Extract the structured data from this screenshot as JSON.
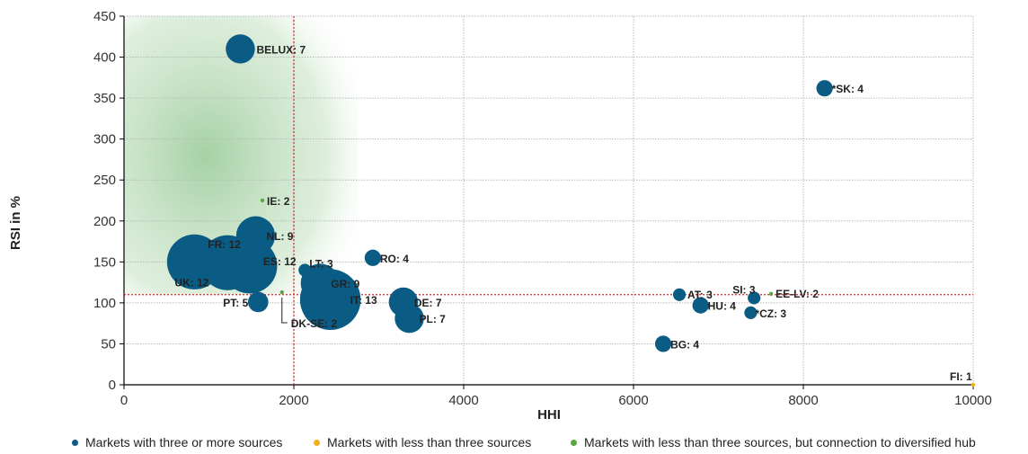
{
  "colors": {
    "blue": "#0b5c85",
    "orange": "#f5b015",
    "green": "#57a845",
    "threshold": "#cc2a2a",
    "zone": "#5cab5a",
    "grid": "#b8b8b8"
  },
  "chart_data": {
    "type": "scatter",
    "xlabel": "HHI",
    "ylabel": "RSI in %",
    "xlim": [
      0,
      10000
    ],
    "ylim": [
      0,
      450
    ],
    "xticks": [
      "0",
      "2000",
      "4000",
      "6000",
      "8000",
      "10000"
    ],
    "yticks": [
      "0",
      "50",
      "100",
      "150",
      "200",
      "250",
      "300",
      "350",
      "400",
      "450"
    ],
    "grid": true,
    "thresholds": {
      "x": 2000,
      "y": 110
    },
    "highlight_zone": {
      "x": [
        0,
        2750
      ],
      "y": [
        110,
        450
      ]
    },
    "legend": [
      {
        "label": "Markets with three or more sources",
        "color": "blue"
      },
      {
        "label": "Markets with less than three sources",
        "color": "orange"
      },
      {
        "label": "Markets with less than three sources, but connection to diversified hub",
        "color": "green"
      }
    ],
    "points": [
      {
        "label": "BELUX: 7",
        "x": 1370,
        "y": 410,
        "sources": 7,
        "group": "blue"
      },
      {
        "label": "*SK: 4",
        "x": 8250,
        "y": 362,
        "sources": 4,
        "group": "blue"
      },
      {
        "label": "IE: 2",
        "x": 1630,
        "y": 225,
        "sources": 2,
        "group": "green"
      },
      {
        "label": "NL: 9",
        "x": 1550,
        "y": 182,
        "sources": 9,
        "group": "blue"
      },
      {
        "label": "FR: 12",
        "x": 1220,
        "y": 149,
        "sources": 12,
        "group": "blue"
      },
      {
        "label": "ES: 12",
        "x": 1480,
        "y": 145,
        "sources": 12,
        "group": "blue"
      },
      {
        "label": "UK: 12",
        "x": 830,
        "y": 150,
        "sources": 12,
        "group": "blue"
      },
      {
        "label": "LT: 3",
        "x": 2130,
        "y": 140,
        "sources": 3,
        "group": "blue"
      },
      {
        "label": "RO: 4",
        "x": 2930,
        "y": 155,
        "sources": 4,
        "group": "blue"
      },
      {
        "label": "GR: 9",
        "x": 2310,
        "y": 124,
        "sources": 9,
        "group": "blue"
      },
      {
        "label": "IT: 13",
        "x": 2430,
        "y": 104,
        "sources": 13,
        "group": "blue"
      },
      {
        "label": "PT: 5",
        "x": 1580,
        "y": 101,
        "sources": 5,
        "group": "blue"
      },
      {
        "label": "DK-SE: 2",
        "x": 1860,
        "y": 113,
        "sources": 2,
        "group": "green"
      },
      {
        "label": "DE: 7",
        "x": 3290,
        "y": 101,
        "sources": 7,
        "group": "blue"
      },
      {
        "label": "PL: 7",
        "x": 3360,
        "y": 81,
        "sources": 7,
        "group": "blue"
      },
      {
        "label": "AT: 3",
        "x": 6540,
        "y": 110,
        "sources": 3,
        "group": "blue"
      },
      {
        "label": "SI: 3",
        "x": 7420,
        "y": 106,
        "sources": 3,
        "group": "blue"
      },
      {
        "label": "EE-LV: 2",
        "x": 7620,
        "y": 111,
        "sources": 2,
        "group": "green"
      },
      {
        "label": "HU: 4",
        "x": 6790,
        "y": 97,
        "sources": 4,
        "group": "blue"
      },
      {
        "label": "*CZ: 3",
        "x": 7380,
        "y": 88,
        "sources": 3,
        "group": "blue"
      },
      {
        "label": "BG: 4",
        "x": 6350,
        "y": 50,
        "sources": 4,
        "group": "blue"
      },
      {
        "label": "FI: 1",
        "x": 10000,
        "y": 0,
        "sources": 1,
        "group": "orange"
      }
    ]
  }
}
